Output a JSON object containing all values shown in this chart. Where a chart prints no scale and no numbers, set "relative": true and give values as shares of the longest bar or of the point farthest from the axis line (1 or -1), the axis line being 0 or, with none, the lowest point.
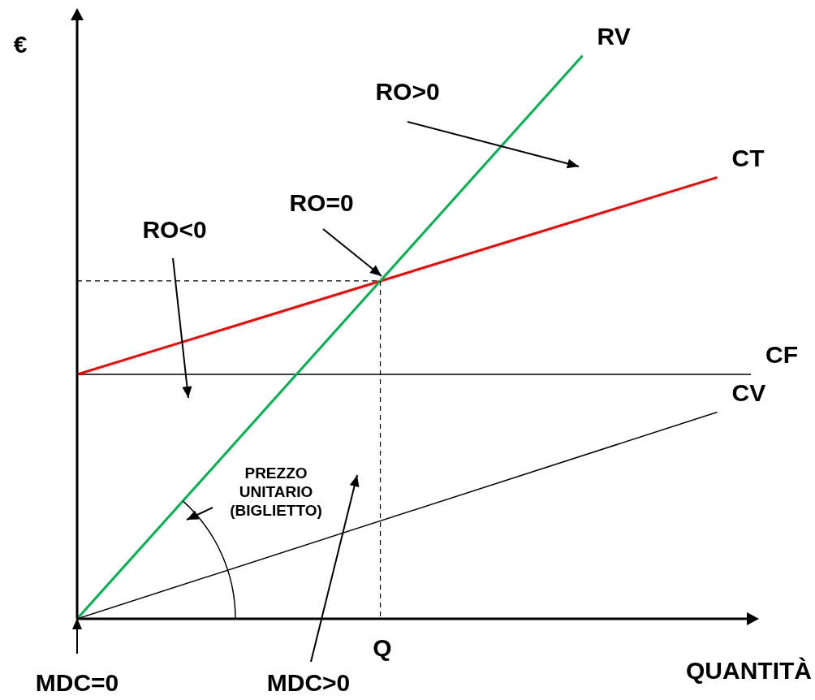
{
  "chart_data": {
    "type": "line",
    "relative": true,
    "xlabel": "QUANTITÀ",
    "ylabel": "€",
    "legend": false,
    "marker": "none",
    "categories": [
      null,
      null,
      null,
      null,
      null,
      null,
      null,
      null,
      null,
      null,
      null,
      null,
      null,
      null,
      null,
      null,
      null,
      null,
      null,
      null,
      null
    ],
    "series": [
      {
        "name": "RV",
        "color": "#00b050",
        "values": [
          0,
          null,
          null,
          null,
          null,
          null,
          null,
          null,
          null,
          null,
          null,
          null,
          null,
          null,
          null,
          1,
          null,
          null,
          null,
          null,
          null
        ]
      },
      {
        "name": "CT",
        "color": "#ff0000",
        "values": [
          0.434,
          null,
          null,
          null,
          null,
          null,
          null,
          null,
          null,
          null,
          null,
          null,
          null,
          null,
          null,
          null,
          null,
          null,
          null,
          0.784,
          null
        ]
      },
      {
        "name": "CF",
        "color": "#000000",
        "values": [
          0.434,
          null,
          null,
          null,
          null,
          null,
          null,
          null,
          null,
          null,
          null,
          null,
          null,
          null,
          null,
          null,
          null,
          null,
          null,
          null,
          0.434
        ]
      },
      {
        "name": "CV",
        "color": "#000000",
        "values": [
          0,
          null,
          null,
          null,
          null,
          null,
          null,
          null,
          null,
          null,
          null,
          null,
          null,
          null,
          null,
          null,
          null,
          null,
          null,
          0.367,
          null
        ]
      },
      {
        "color": "#000000",
        "line_style": "dashed",
        "values": [
          0.6,
          null,
          null,
          null,
          null,
          null,
          null,
          null,
          null,
          0.6,
          null,
          null,
          null,
          null,
          null,
          null,
          null,
          null,
          null,
          null,
          null
        ]
      }
    ],
    "annotations": [
      "RO>0",
      "RO=0",
      "RO<0",
      "PREZZO\nUNITARIO\n(BIGLIETTO)",
      "MDC=0",
      "MDC>0",
      "Q"
    ]
  }
}
